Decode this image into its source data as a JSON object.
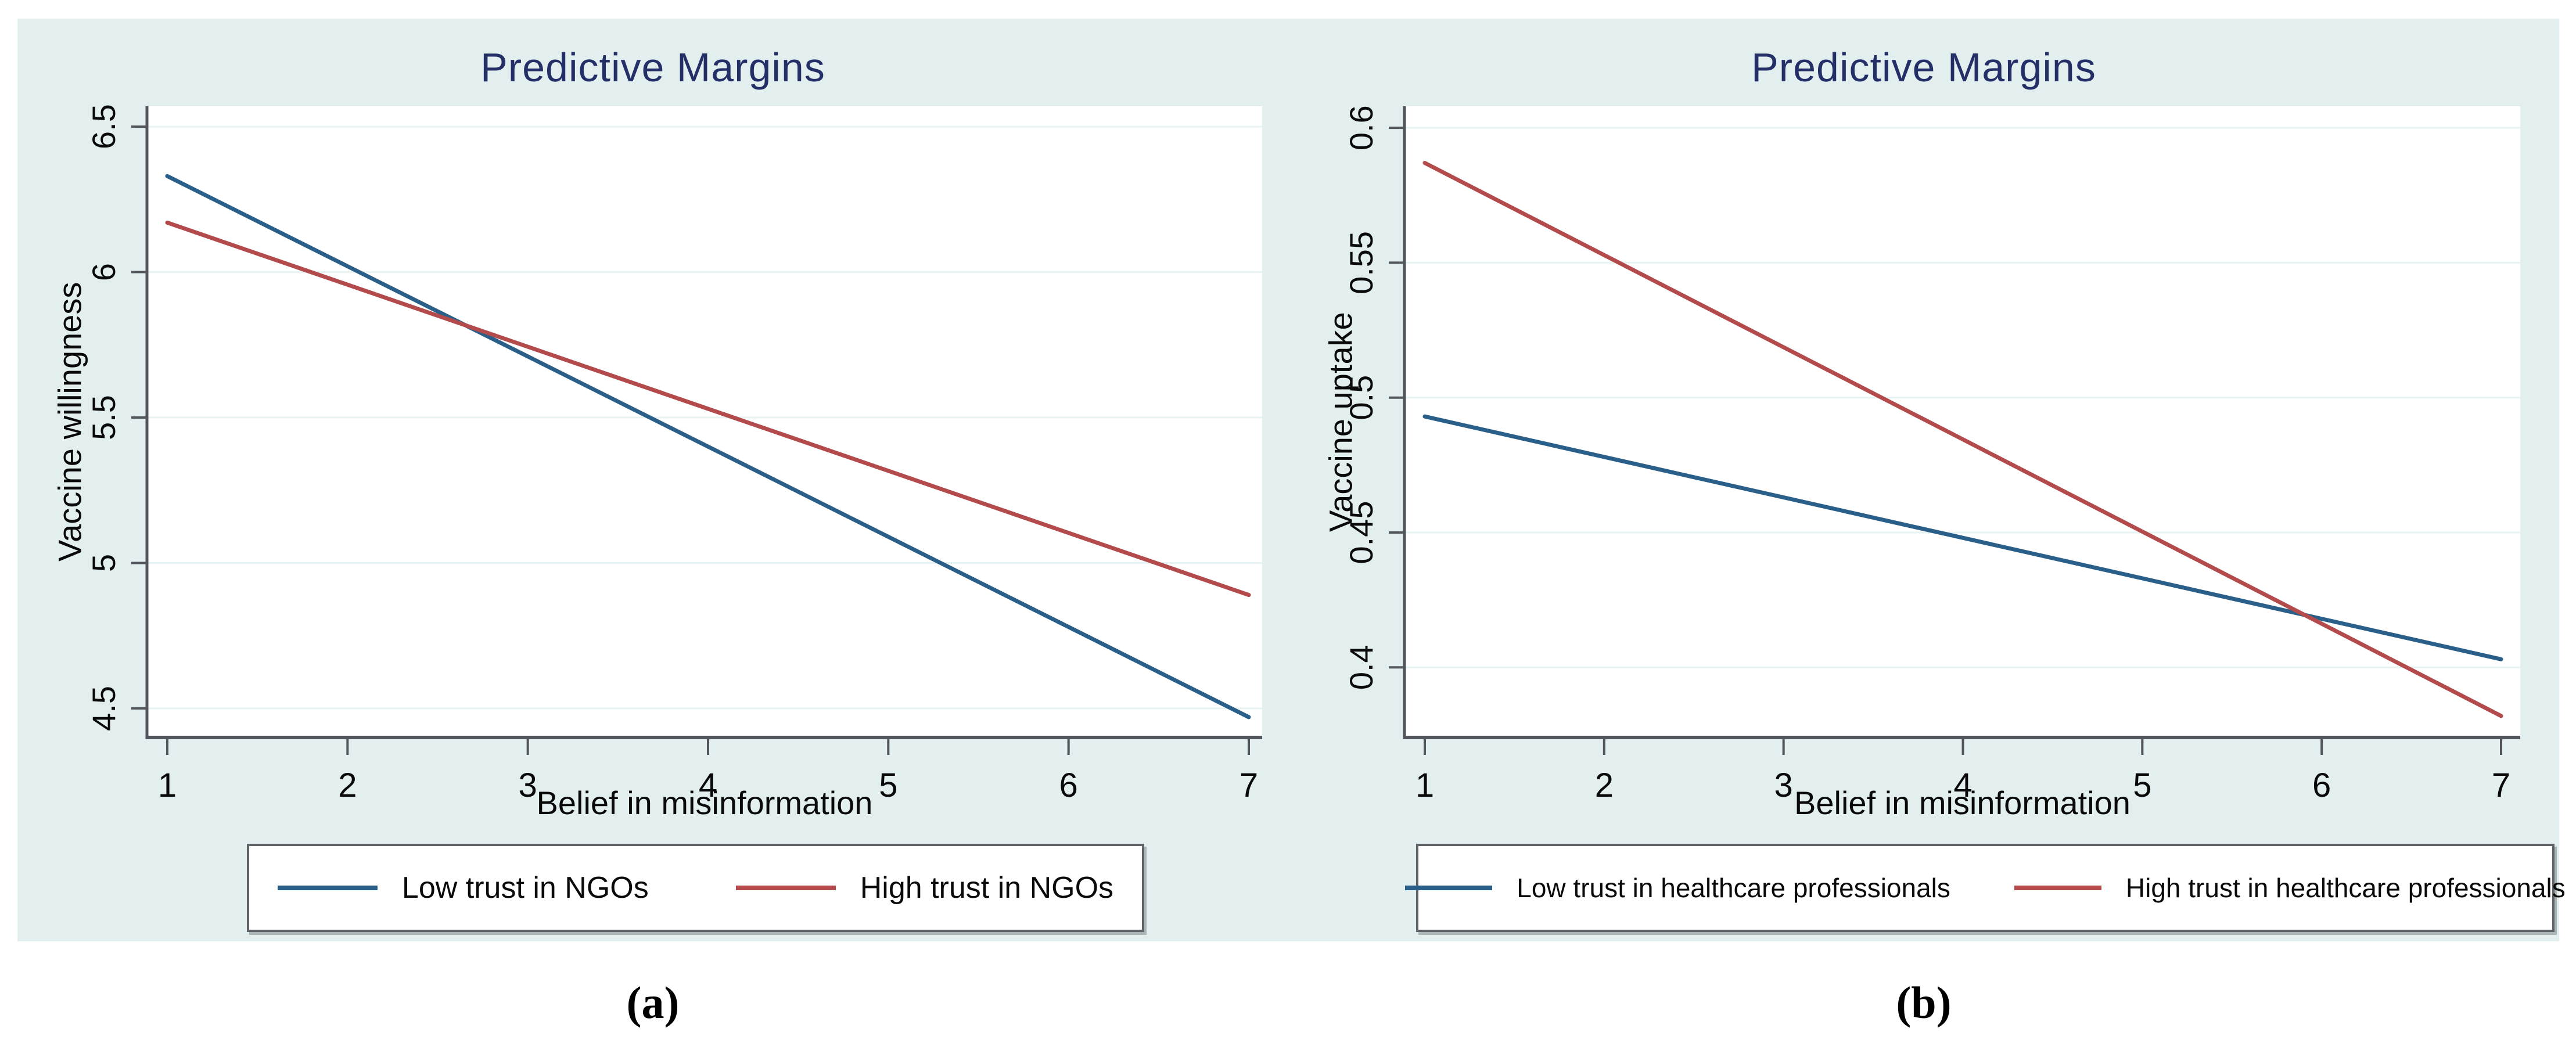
{
  "colors": {
    "panel_background": "#e3efef",
    "plot_background": "#ffffff",
    "gridline": "#e7f2f2",
    "axis": "#52565c",
    "tick_label": "#0a0a0a",
    "title": "#232f66",
    "legend_border": "#5f6367",
    "series_blue": "#2a5f8a",
    "series_red": "#b34a4b"
  },
  "chart_data": [
    {
      "type": "line",
      "title": "Predictive Margins",
      "xlabel": "Belief in misinformation",
      "ylabel": "Vaccine willingness",
      "caption": "(a)",
      "grid": "horizontal",
      "legend_position": "bottom",
      "x_range": [
        1,
        7
      ],
      "xticks": [
        "1",
        "2",
        "3",
        "4",
        "5",
        "6",
        "7"
      ],
      "yticks": [
        {
          "value": 4.5,
          "label": "4.5"
        },
        {
          "value": 5,
          "label": "5"
        },
        {
          "value": 5.5,
          "label": "5.5"
        },
        {
          "value": 6,
          "label": "6"
        },
        {
          "value": 6.5,
          "label": "6.5"
        }
      ],
      "ylim": [
        4.4,
        6.57
      ],
      "series": [
        {
          "key": "low-trust",
          "name": "Low trust in NGOs",
          "color": "#2a5f8a",
          "x": [
            1,
            7
          ],
          "y": [
            6.33,
            4.47
          ]
        },
        {
          "key": "high-trust",
          "name": "High trust in NGOs",
          "color": "#b34a4b",
          "x": [
            1,
            7
          ],
          "y": [
            6.17,
            4.89
          ]
        }
      ]
    },
    {
      "type": "line",
      "title": "Predictive Margins",
      "xlabel": "Belief in misinformation",
      "ylabel": "Vaccine uptake",
      "caption": "(b)",
      "grid": "horizontal",
      "legend_position": "bottom",
      "x_range": [
        1,
        7
      ],
      "xticks": [
        "1",
        "2",
        "3",
        "4",
        "5",
        "6",
        "7"
      ],
      "yticks": [
        {
          "value": 0.4,
          "label": "0.4"
        },
        {
          "value": 0.45,
          "label": "0.45"
        },
        {
          "value": 0.5,
          "label": "0.5"
        },
        {
          "value": 0.55,
          "label": "0.55"
        },
        {
          "value": 0.6,
          "label": "0.6"
        }
      ],
      "ylim": [
        0.374,
        0.608
      ],
      "series": [
        {
          "key": "low-trust",
          "name": "Low trust in healthcare professionals",
          "color": "#2a5f8a",
          "x": [
            1,
            7
          ],
          "y": [
            0.493,
            0.403
          ]
        },
        {
          "key": "high-trust",
          "name": "High trust in healthcare professionals",
          "color": "#b34a4b",
          "x": [
            1,
            7
          ],
          "y": [
            0.587,
            0.382
          ]
        }
      ]
    }
  ]
}
